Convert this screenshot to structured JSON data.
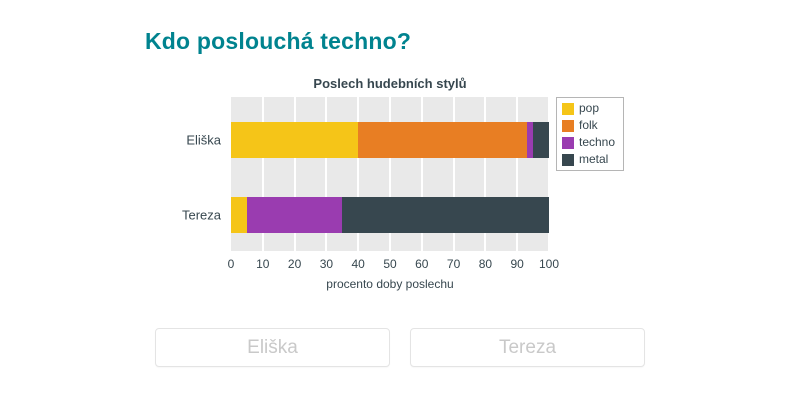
{
  "page": {
    "title": "Kdo poslouchá techno?"
  },
  "chart_data": {
    "type": "bar",
    "orientation": "horizontal",
    "stacked": true,
    "title": "Poslech hudebních stylů",
    "categories": [
      "Eliška",
      "Tereza"
    ],
    "series": [
      {
        "name": "pop",
        "color": "#f5c518",
        "values": [
          40,
          5
        ]
      },
      {
        "name": "folk",
        "color": "#e87e23",
        "values": [
          53,
          0
        ]
      },
      {
        "name": "techno",
        "color": "#9a3cb0",
        "values": [
          2,
          30
        ]
      },
      {
        "name": "metal",
        "color": "#37474f",
        "values": [
          5,
          65
        ]
      }
    ],
    "xlabel": "procento doby poslechu",
    "xlim": [
      0,
      100
    ],
    "xticks": [
      0,
      10,
      20,
      30,
      40,
      50,
      60,
      70,
      80,
      90,
      100
    ],
    "legend_position": "top-right",
    "grid": true,
    "plot_background": "#e9e9e9"
  },
  "answers": {
    "buttons": [
      {
        "label": "Eliška"
      },
      {
        "label": "Tereza"
      }
    ]
  },
  "colors": {
    "title": "#00838f",
    "axis_text": "#37474f",
    "button_text": "#c9c9c9",
    "button_border": "#e4e4e4"
  }
}
